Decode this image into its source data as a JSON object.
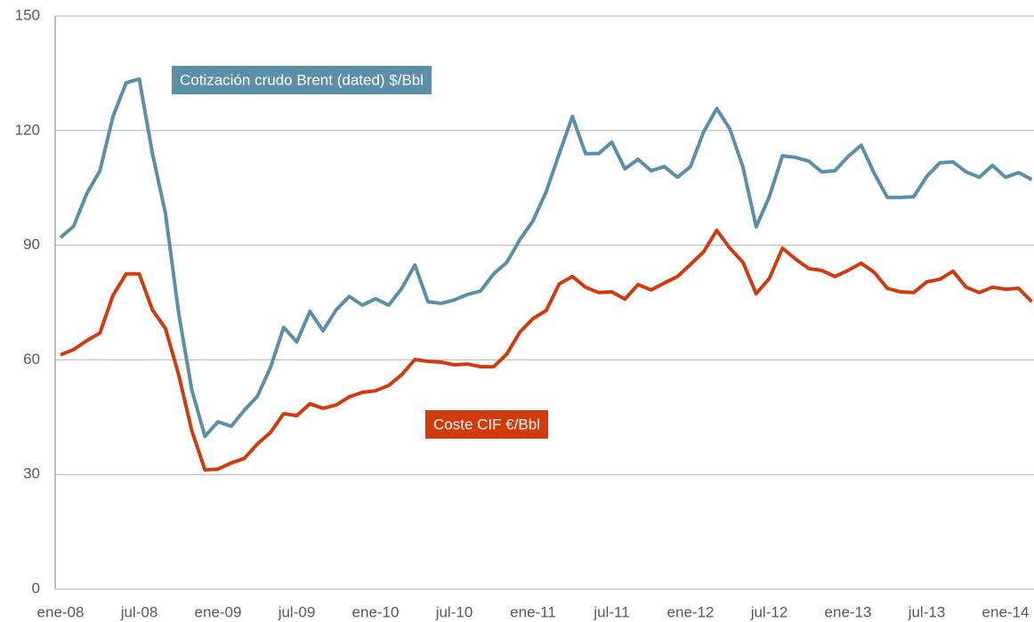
{
  "chart_data": {
    "type": "line",
    "categories": [
      "ene-08",
      null,
      null,
      null,
      null,
      null,
      "jul-08",
      null,
      null,
      null,
      null,
      null,
      "ene-09",
      null,
      null,
      null,
      null,
      null,
      "jul-09",
      null,
      null,
      null,
      null,
      null,
      "ene-10",
      null,
      null,
      null,
      null,
      null,
      "jul-10",
      null,
      null,
      null,
      null,
      null,
      "ene-11",
      null,
      null,
      null,
      null,
      null,
      "jul-11",
      null,
      null,
      null,
      null,
      null,
      "ene-12",
      null,
      null,
      null,
      null,
      null,
      "jul-12",
      null,
      null,
      null,
      null,
      null,
      "ene-13",
      null,
      null,
      null,
      null,
      null,
      "jul-13",
      null,
      null,
      null,
      null,
      null,
      "ene-14",
      null,
      null
    ],
    "series": [
      {
        "name": "Cotización crudo Brent (dated) $/Bbl",
        "color": "#5b8fa8",
        "values": [
          92,
          95,
          103.5,
          109.5,
          123.7,
          132.5,
          133.5,
          114,
          98.3,
          72.2,
          52.2,
          40,
          43.8,
          42.6,
          46.8,
          50.5,
          58,
          68.5,
          64.7,
          72.7,
          67.6,
          73.1,
          76.6,
          74.3,
          76,
          74.3,
          78.7,
          84.8,
          75.2,
          74.8,
          75.7,
          77.1,
          78,
          82.5,
          85.5,
          91.5,
          96.4,
          104,
          114,
          123.7,
          114,
          114,
          117,
          110,
          112.5,
          109.5,
          110.6,
          107.8,
          110.6,
          119.7,
          125.8,
          120.4,
          110.4,
          94.8,
          102.7,
          113.4,
          113,
          112,
          109.2,
          109.5,
          113.2,
          116.2,
          108.8,
          102.5,
          102.5,
          102.7,
          108,
          111.6,
          111.8,
          109.2,
          107.8,
          110.9,
          107.8,
          109,
          107.2
        ]
      },
      {
        "name": "Coste CIF €/Bbl",
        "color": "#d03a0c",
        "values": [
          61.3,
          62.7,
          65,
          67,
          76.9,
          82.5,
          82.5,
          73.1,
          68.2,
          56.1,
          41.5,
          31.2,
          31.4,
          33,
          34.2,
          38,
          41,
          45.9,
          45.4,
          48.5,
          47.3,
          48.2,
          50.3,
          51.5,
          51.9,
          53.3,
          56.1,
          60.1,
          59.6,
          59.4,
          58.7,
          58.9,
          58.2,
          58.2,
          61.5,
          67.3,
          70.8,
          72.9,
          79.9,
          81.8,
          79,
          77.6,
          77.8,
          75.9,
          79.7,
          78.3,
          80.1,
          81.8,
          85,
          88.3,
          93.9,
          89.2,
          85.5,
          77.3,
          81.3,
          89.2,
          86.4,
          83.9,
          83.4,
          81.8,
          83.4,
          85.3,
          82.9,
          78.7,
          77.8,
          77.6,
          80.4,
          81.1,
          83.2,
          79,
          77.6,
          79,
          78.5,
          78.7,
          75.2
        ]
      }
    ],
    "ylim": [
      0,
      150
    ],
    "yticks": [
      0,
      30,
      60,
      90,
      120,
      150
    ],
    "grid": true
  }
}
